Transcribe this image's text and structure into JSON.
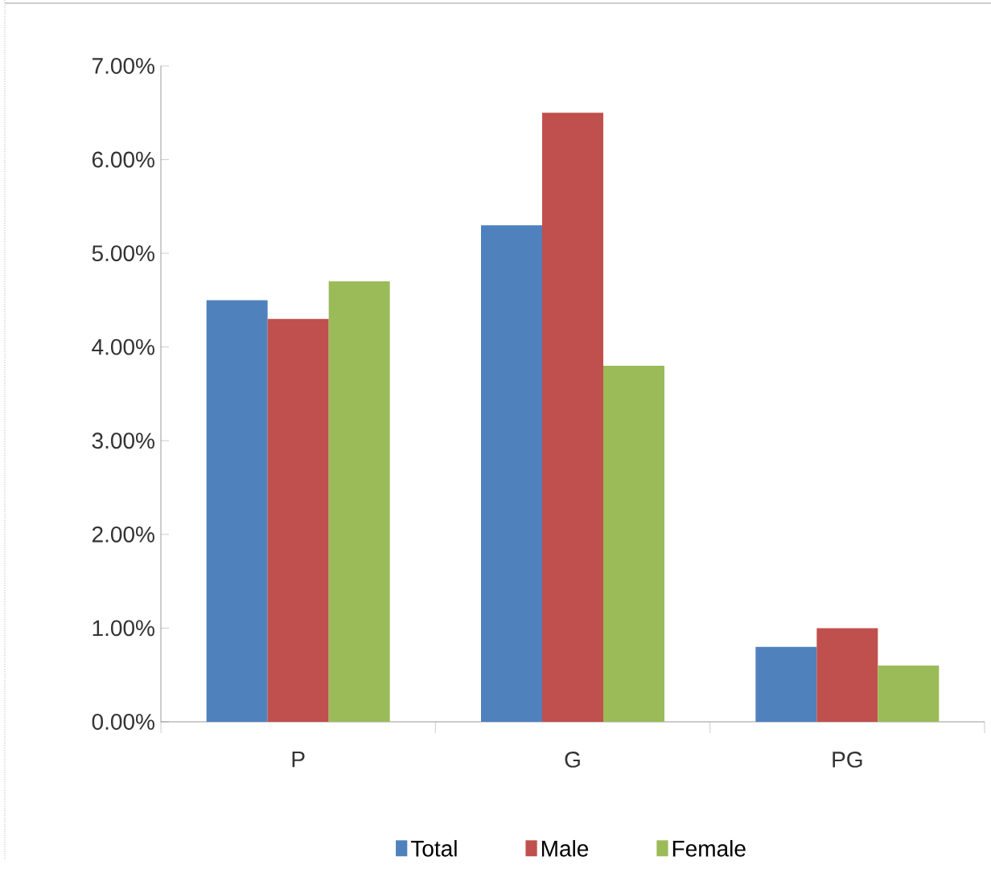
{
  "chart_data": {
    "type": "bar",
    "categories": [
      "P",
      "G",
      "PG"
    ],
    "series": [
      {
        "name": "Total",
        "color": "#4f81bd",
        "values": [
          4.5,
          5.3,
          0.8
        ]
      },
      {
        "name": "Male",
        "color": "#c0504d",
        "values": [
          4.3,
          6.5,
          1.0
        ]
      },
      {
        "name": "Female",
        "color": "#9bbb59",
        "values": [
          4.7,
          3.8,
          0.6
        ]
      }
    ],
    "ylim": [
      0,
      7
    ],
    "yticks": [
      {
        "value": 0,
        "label": "0.00%"
      },
      {
        "value": 1,
        "label": "1.00%"
      },
      {
        "value": 2,
        "label": "2.00%"
      },
      {
        "value": 3,
        "label": "3.00%"
      },
      {
        "value": 4,
        "label": "4.00%"
      },
      {
        "value": 5,
        "label": "5.00%"
      },
      {
        "value": 6,
        "label": "6.00%"
      },
      {
        "value": 7,
        "label": "7.00%"
      }
    ],
    "grid": false,
    "legend": "bottom"
  }
}
